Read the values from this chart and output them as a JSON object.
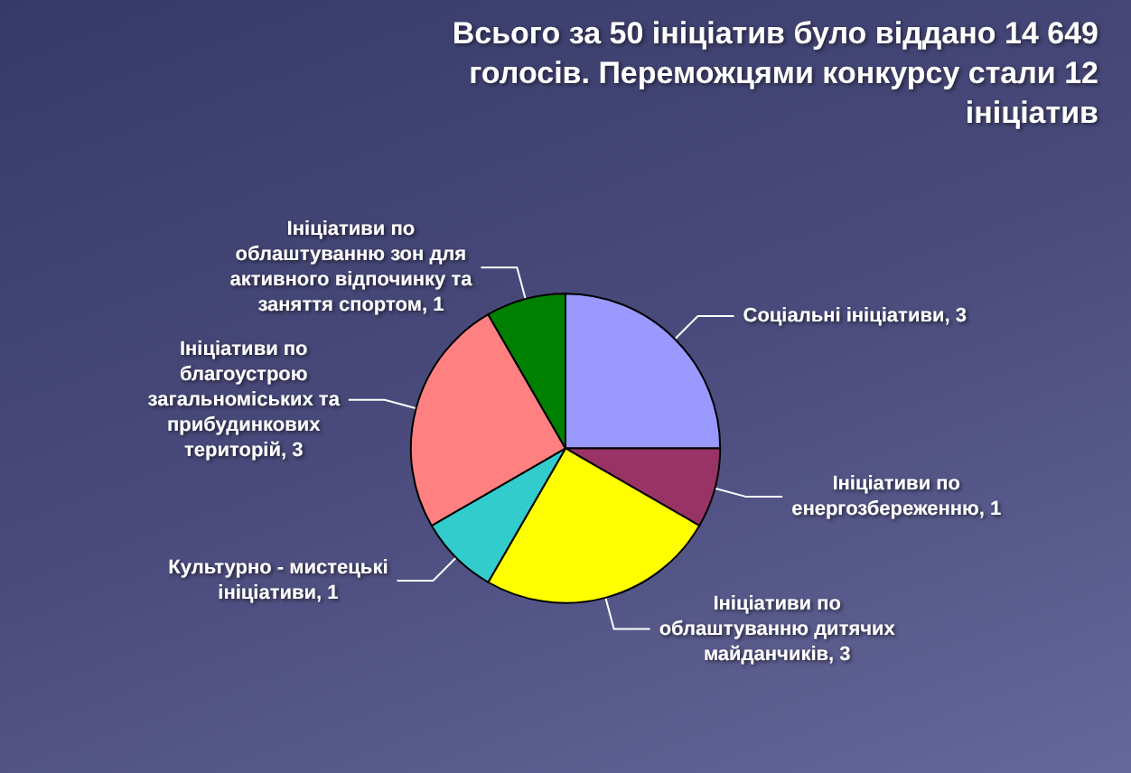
{
  "chart_data": {
    "type": "pie",
    "title": "Всього за 50 ініціатив було віддано 14 649 голосів. Переможцями конкурсу стали 12 ініціатив",
    "categories": [
      "Соціальні ініціативи",
      "Ініціативи по енергозбереженню",
      "Ініціативи по облаштуванню дитячих майданчиків",
      "Культурно - мистецькі ініціативи",
      "Ініціативи по благоустрою загальноміських та прибудинкових територій",
      "Ініціативи по облаштуванню зон для активного відпочинку та заняття спортом"
    ],
    "values": [
      3,
      1,
      3,
      1,
      3,
      1
    ],
    "value_labels": [
      ", 3",
      ", 1",
      ", 3",
      ", 1",
      ", 3",
      ", 1"
    ],
    "colors": [
      "#9999ff",
      "#993366",
      "#ffff00",
      "#33cccc",
      "#ff8080",
      "#008000"
    ]
  }
}
